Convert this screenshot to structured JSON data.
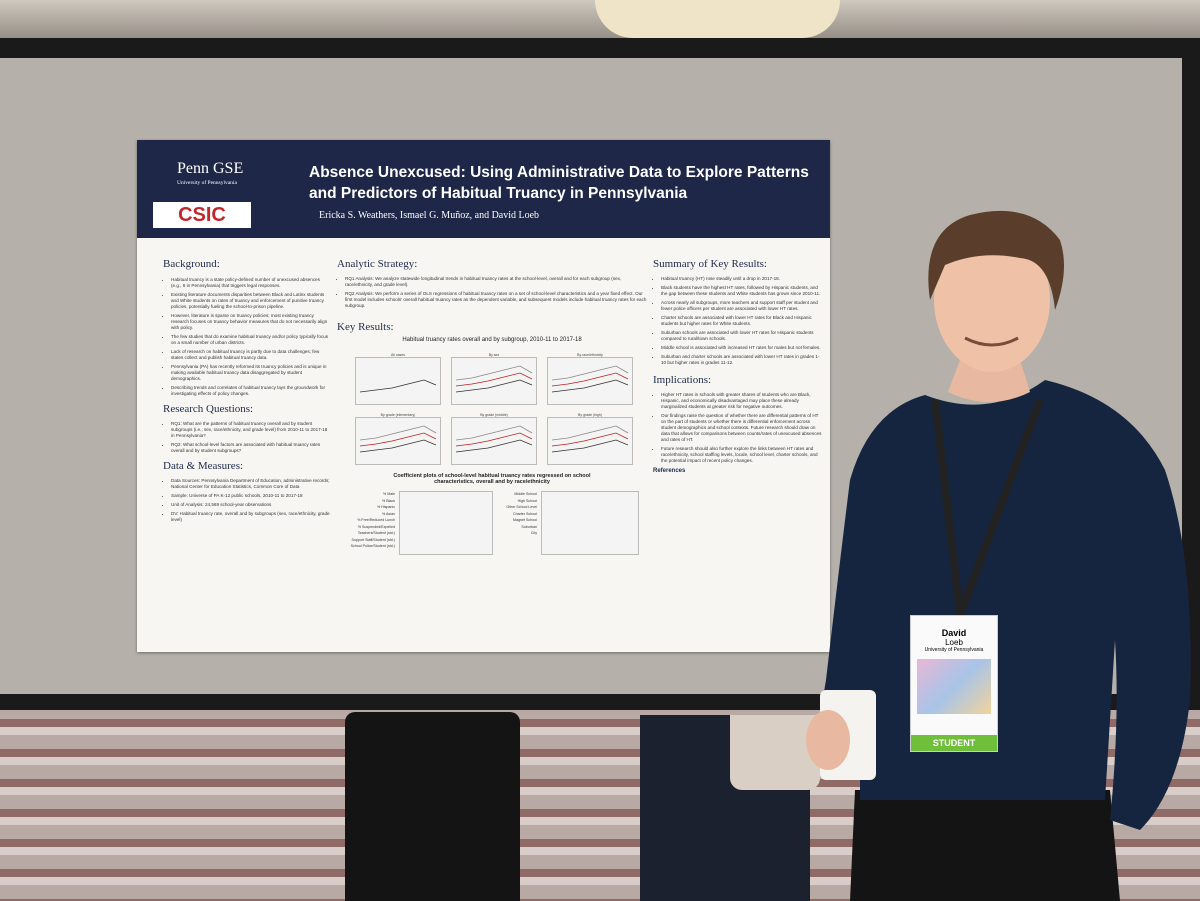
{
  "poster": {
    "logos": {
      "school": "Penn GSE",
      "university": "University of Pennsylvania",
      "partner": "CSIC"
    },
    "title": "Absence Unexcused: Using Administrative Data to Explore Patterns and Predictors of Habitual Truancy in Pennsylvania",
    "authors": "Ericka S. Weathers, Ismael G. Muñoz, and David Loeb",
    "background": {
      "heading": "Background:",
      "bullets": [
        "Habitual truancy is a state policy-defined number of unexcused absences (e.g., 6 in Pennsylvania) that triggers legal responses.",
        "Existing literature documents disparities between Black and Latinx students and White students on rates of truancy and enforcement of punitive truancy policies, potentially fueling the school-to-prison pipeline.",
        "However, literature is sparse on truancy policies; most existing truancy research focuses on truancy behavior measures that do not necessarily align with policy.",
        "The few studies that do examine habitual truancy and/or policy typically focus on a small number of urban districts.",
        "Lack of research on habitual truancy is partly due to data challenges; few states collect and publish habitual truancy data.",
        "Pennsylvania (PA) has recently reformed its truancy policies and is unique in making available habitual truancy data disaggregated by student demographics.",
        "Describing trends and correlates of habitual truancy lays the groundwork for investigating effects of policy changes."
      ]
    },
    "research_questions": {
      "heading": "Research Questions:",
      "bullets": [
        "RQ1: What are the patterns of habitual truancy overall and by student subgroups (i.e., sex, race/ethnicity, and grade level) from 2010-11 to 2017-18 in Pennsylvania?",
        "RQ2: What school-level factors are associated with habitual truancy rates overall and by student subgroups?"
      ]
    },
    "data_measures": {
      "heading": "Data & Measures:",
      "bullets": [
        "Data Sources: Pennsylvania Department of Education, administrative records; National Center for Education Statistics, Common Core of Data",
        "Sample: Universe of PA K-12 public schools, 2010-11 to 2017-18",
        "Unit of Analysis: 24,569 school-year observations",
        "DV: Habitual truancy rate, overall and by subgroups (sex, race/ethnicity, grade level)"
      ]
    },
    "analytic_strategy": {
      "heading": "Analytic Strategy:",
      "bullets": [
        "RQ1 Analysis: We analyze statewide longitudinal trends in habitual truancy rates at the school-level, overall and for each subgroup (sex, race/ethnicity, and grade level).",
        "RQ2 Analysis: We perform a series of OLS regressions of habitual truancy rates on a set of school-level characteristics and a year fixed effect. Our first model includes schools' overall habitual truancy rates as the dependent variable, and subsequent models include habitual truancy rates for each subgroup."
      ]
    },
    "key_results": {
      "heading": "Key Results:",
      "figure1_title": "Habitual truancy rates overall and by subgroup, 2010-11 to 2017-18",
      "panels": [
        "All cases",
        "By sex",
        "By race/ethnicity",
        "By grade (elementary)",
        "By grade (middle)",
        "By grade (high)"
      ],
      "figure2_title": "Coefficient plots of school-level habitual truancy rates regressed on school characteristics, overall and by race/ethnicity",
      "left_plot_labels": [
        "% Male",
        "% Black",
        "% Hispanic",
        "% Asian",
        "% Free/Reduced Lunch",
        "% Suspended/Expelled",
        "Teachers/Student (std.)",
        "Support Staff/Student (std.)",
        "School Police/Student (std.)"
      ],
      "right_plot_labels": [
        "Middle School",
        "High School",
        "Other School Level",
        "Charter School",
        "Magnet School",
        "Suburban",
        "City"
      ]
    },
    "summary": {
      "heading": "Summary of Key Results:",
      "bullets": [
        "Habitual truancy (HT) rose steadily until a drop in 2017-18.",
        "Black students have the highest HT rates, followed by Hispanic students, and the gap between these students and White students has grown since 2010-11.",
        "Across nearly all subgroups, more teachers and support staff per student and fewer police officers per student are associated with lower HT rates.",
        "Charter schools are associated with lower HT rates for Black and Hispanic students but higher rates for White students.",
        "Suburban schools are associated with lower HT rates for Hispanic students compared to rural/town schools.",
        "Middle school is associated with increased HT rates for males but not females.",
        "Suburban and charter schools are associated with lower HT rates in grades 1-10 but higher rates in grades 11-12."
      ]
    },
    "implications": {
      "heading": "Implications:",
      "bullets": [
        "Higher HT rates in schools with greater shares of students who are Black, Hispanic, and economically disadvantaged may place these already marginalized students at greater risk for negative outcomes.",
        "Our findings raise the question of whether there are differential patterns of HT on the part of students or whether there is differential enforcement across student demographics and school contexts. Future research should draw on data that allows for comparisons between counts/rates of unexcused absences and rates of HT.",
        "Future research should also further explore the links between HT rates and race/ethnicity, school staffing levels, locale, school level, charter schools, and the potential impact of recent policy changes."
      ]
    },
    "references_heading": "References"
  },
  "badge": {
    "first_name": "David",
    "last_name": "Loeb",
    "affiliation": "University of Pennsylvania",
    "role": "STUDENT"
  }
}
